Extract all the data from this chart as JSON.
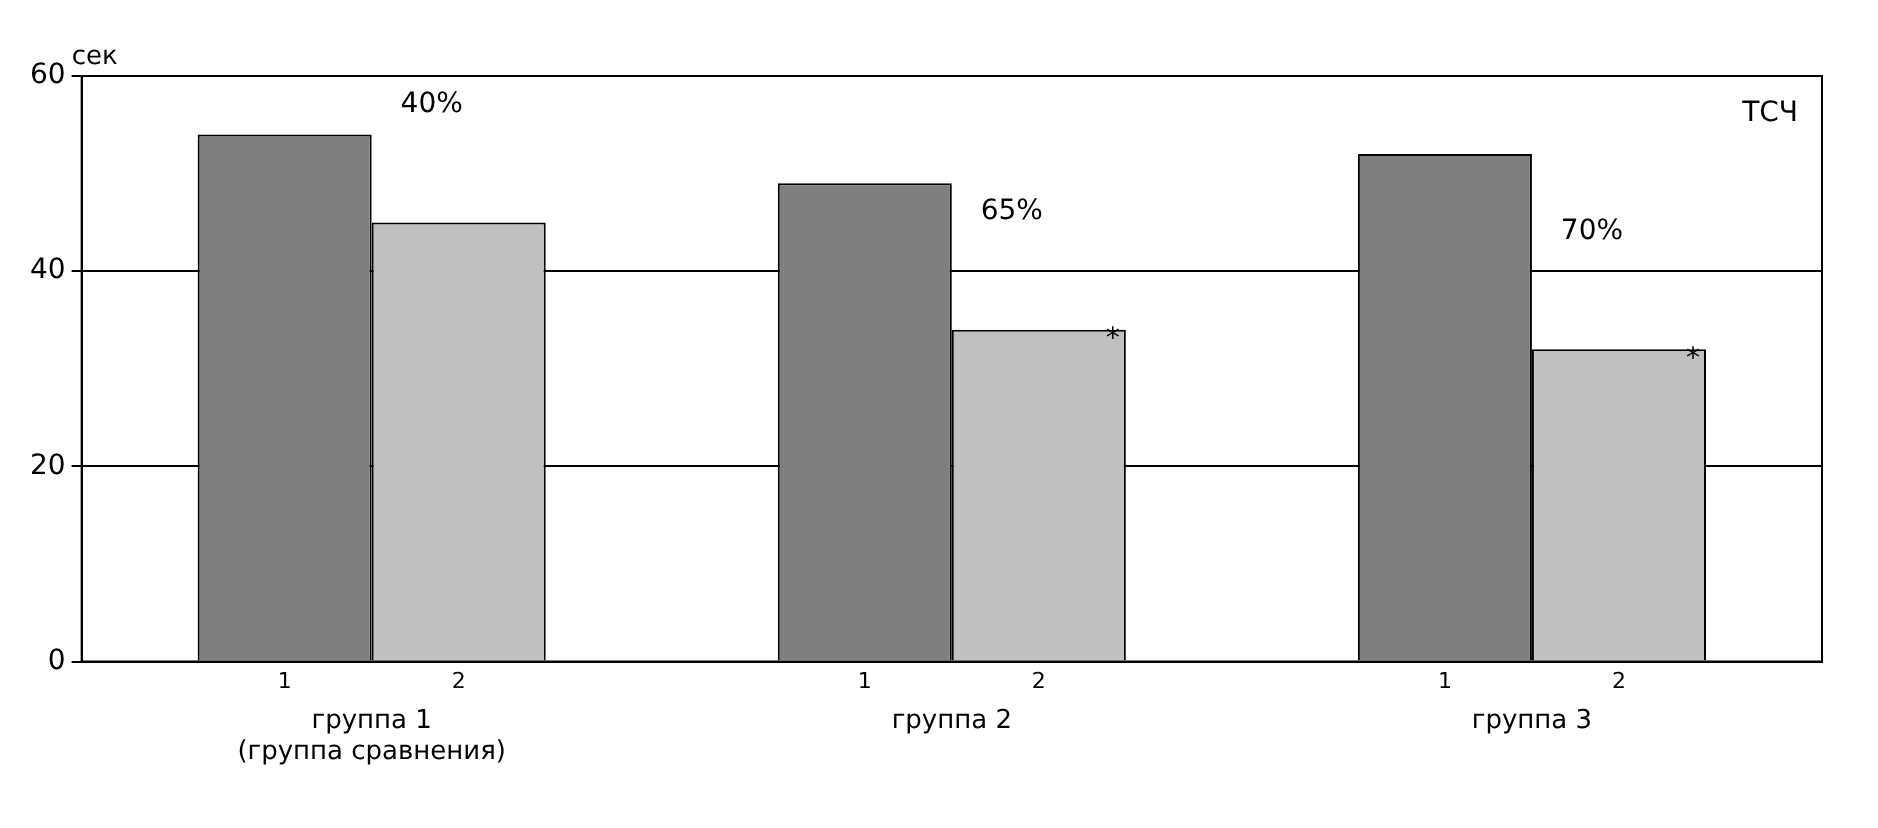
{
  "chart_data": {
    "type": "bar",
    "ylabel": "сек",
    "categories": [
      "группа 1\n(группа сравнения)",
      "группа 2",
      "группа 3"
    ],
    "series": [
      {
        "name": "1",
        "color": "#7f7f7f",
        "values": [
          54,
          49,
          52
        ]
      },
      {
        "name": "2",
        "color": "#c0c0c0",
        "values": [
          45,
          34,
          32
        ]
      }
    ],
    "ylim": [
      0,
      60
    ],
    "yticks": [
      0,
      20,
      40,
      60
    ],
    "grid": "y",
    "annotations": [
      "40%",
      "65%",
      "70%",
      "*",
      "*",
      "ТСЧ"
    ]
  }
}
